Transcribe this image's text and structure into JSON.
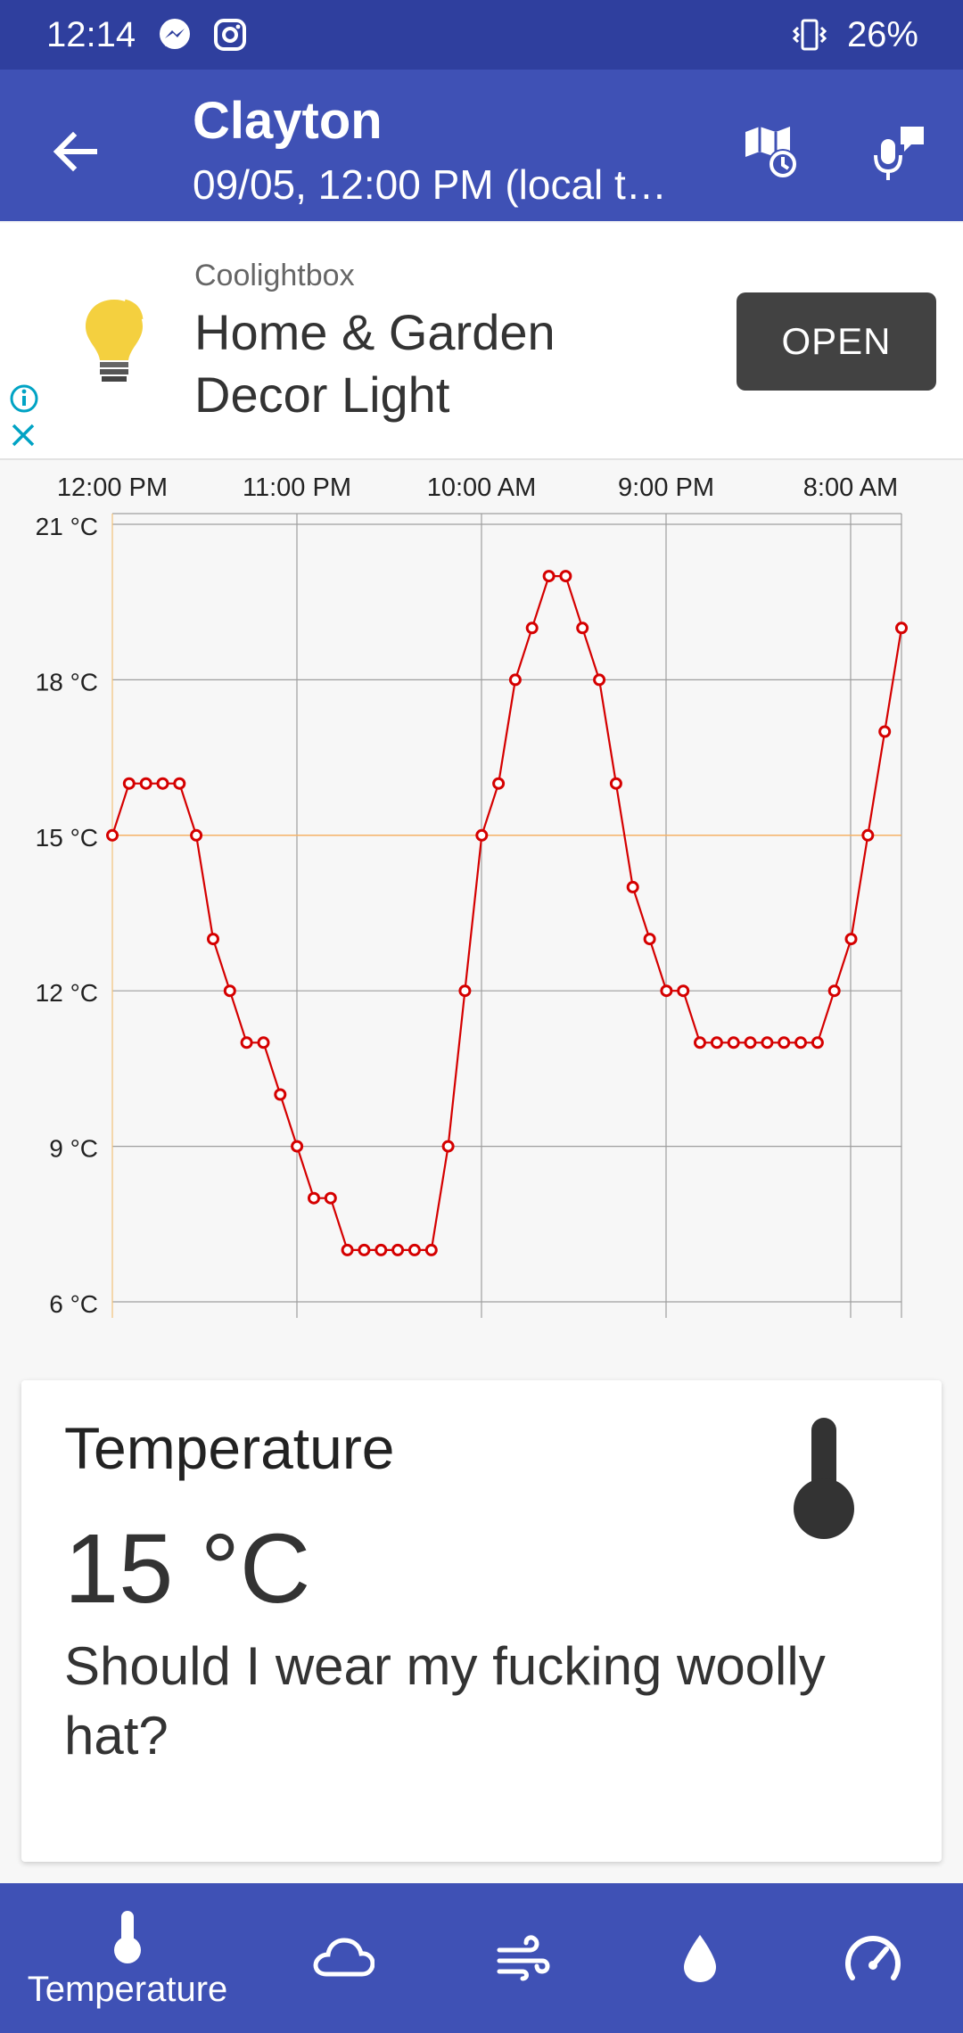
{
  "status_bar": {
    "time": "12:14",
    "battery": "26%"
  },
  "app_bar": {
    "title": "Clayton",
    "subtitle": "09/05, 12:00 PM (local t…"
  },
  "ad": {
    "sponsor": "Coolightbox",
    "headline": "Home & Garden Decor Light",
    "cta": "OPEN"
  },
  "chart_data": {
    "type": "line",
    "title": "",
    "xlabel": "",
    "ylabel": "",
    "x_tick_labels": [
      "12:00 PM",
      "11:00 PM",
      "10:00 AM",
      "9:00 PM",
      "8:00 AM"
    ],
    "y_tick_labels": [
      "21 °C",
      "18 °C",
      "15 °C",
      "12 °C",
      "9 °C",
      "6 °C"
    ],
    "ylim": [
      6,
      21
    ],
    "reference_line": 15,
    "grid": true,
    "series": [
      {
        "values": [
          15,
          16,
          16,
          16,
          16,
          15,
          13,
          12,
          11,
          11,
          10,
          9,
          8,
          8,
          7,
          7,
          7,
          7,
          7,
          7,
          9,
          12,
          15,
          16,
          18,
          19,
          20,
          20,
          19,
          18,
          16,
          14,
          13,
          12,
          12,
          11,
          11,
          11,
          11,
          11,
          11,
          11,
          11,
          12,
          13,
          15,
          17,
          19
        ],
        "color": "#d50000"
      }
    ]
  },
  "card": {
    "title": "Temperature",
    "value": "15 °C",
    "message": "Should I wear my fucking woolly hat?"
  },
  "bottom_nav": {
    "active_label": "Temperature"
  }
}
